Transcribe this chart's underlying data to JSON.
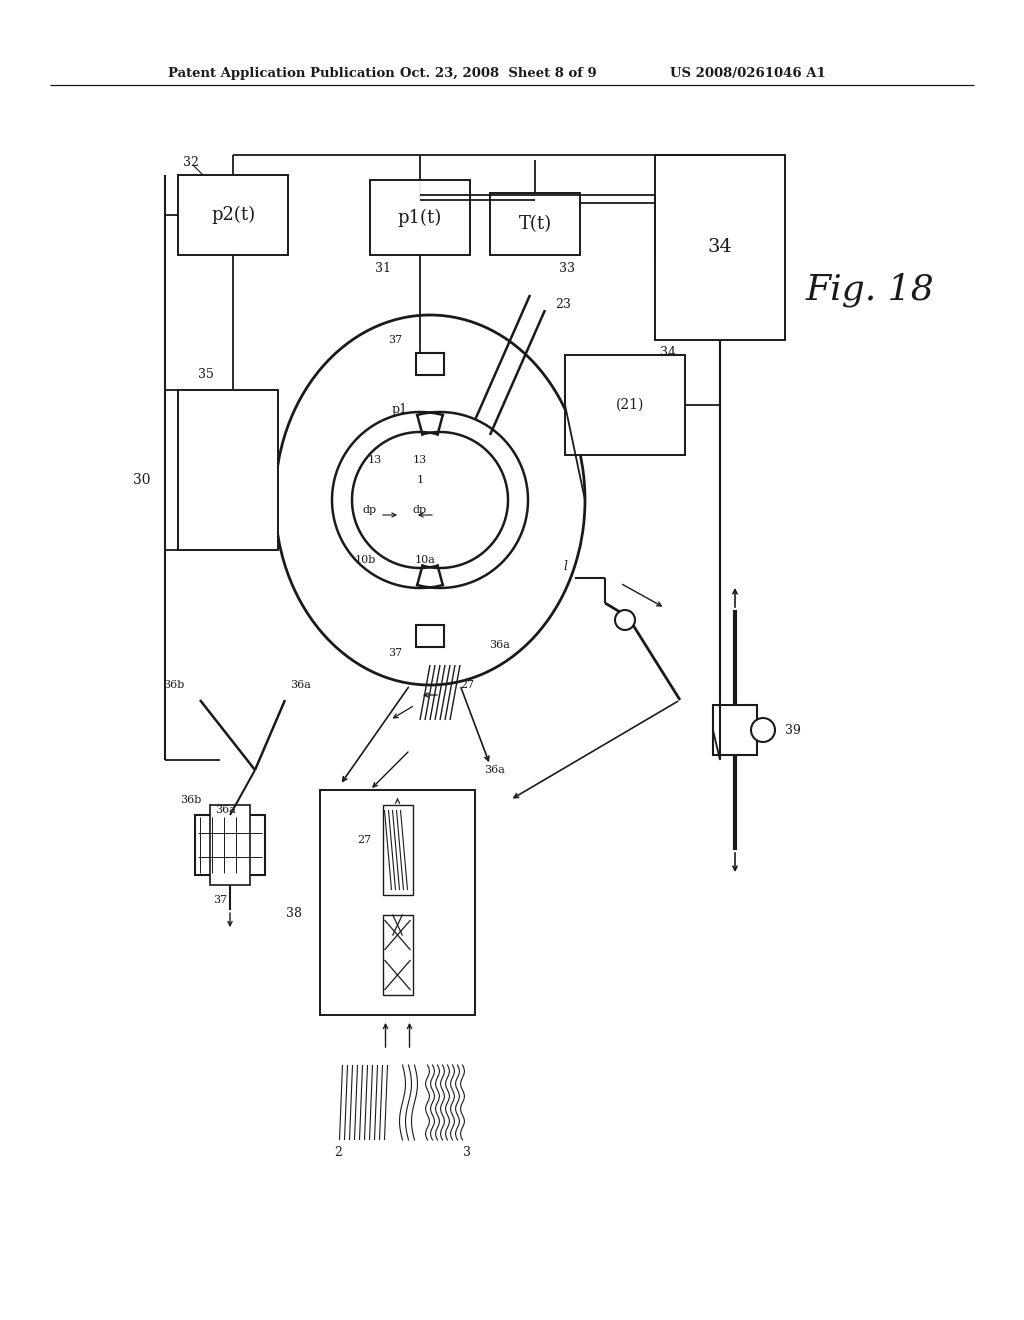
{
  "header_left": "Patent Application Publication",
  "header_center": "Oct. 23, 2008  Sheet 8 of 9",
  "header_right": "US 2008/0261046 A1",
  "bg": "#ffffff",
  "lc": "#1a1a1a"
}
